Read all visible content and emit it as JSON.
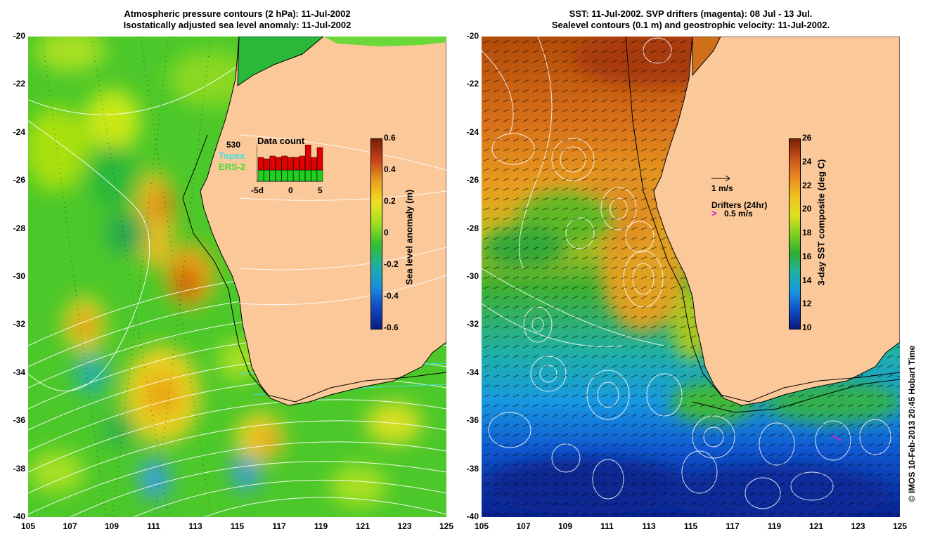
{
  "left": {
    "title1": "Atmospheric pressure contours (2 hPa): 11-Jul-2002",
    "title2": "Isostatically adjusted sea level anomaly: 11-Jul-2002",
    "colorbar_label": "Sea level anomaly (m)",
    "colorbar_ticks": [
      "0.6",
      "0.4",
      "0.2",
      "0",
      "-0.2",
      "-0.4",
      "-0.6"
    ],
    "inset": {
      "title": "Data count",
      "count": "530",
      "sat1": "Topex",
      "sat2": "ERS-2",
      "ticks": [
        "-5d",
        "0",
        "5"
      ]
    }
  },
  "right": {
    "title1": "SST: 11-Jul-2002. SVP drifters (magenta): 08 Jul - 13 Jul.",
    "title2": "Sealevel contours (0.1 m) and geostrophic velocity: 11-Jul-2002.",
    "colorbar_label": "3-day SST composite (deg C)",
    "colorbar_ticks": [
      "26",
      "24",
      "22",
      "20",
      "18",
      "16",
      "14",
      "12",
      "10"
    ],
    "vector_scale": "1 m/s",
    "drifter_label": "Drifters (24hr)",
    "drifter_scale": "0.5 m/s"
  },
  "axes": {
    "lat_ticks": [
      "-20",
      "-22",
      "-24",
      "-26",
      "-28",
      "-30",
      "-32",
      "-34",
      "-36",
      "-38",
      "-40"
    ],
    "lon_ticks": [
      "105",
      "107",
      "109",
      "111",
      "113",
      "115",
      "117",
      "119",
      "121",
      "123",
      "125"
    ]
  },
  "footer": "© IMOS 10-Feb-2013 20:45 Hobart Time",
  "colors": {
    "land": "#fbc89a",
    "sla_high": "#b03010",
    "sst_high": "#a83a00",
    "sst_low": "#001a90"
  }
}
